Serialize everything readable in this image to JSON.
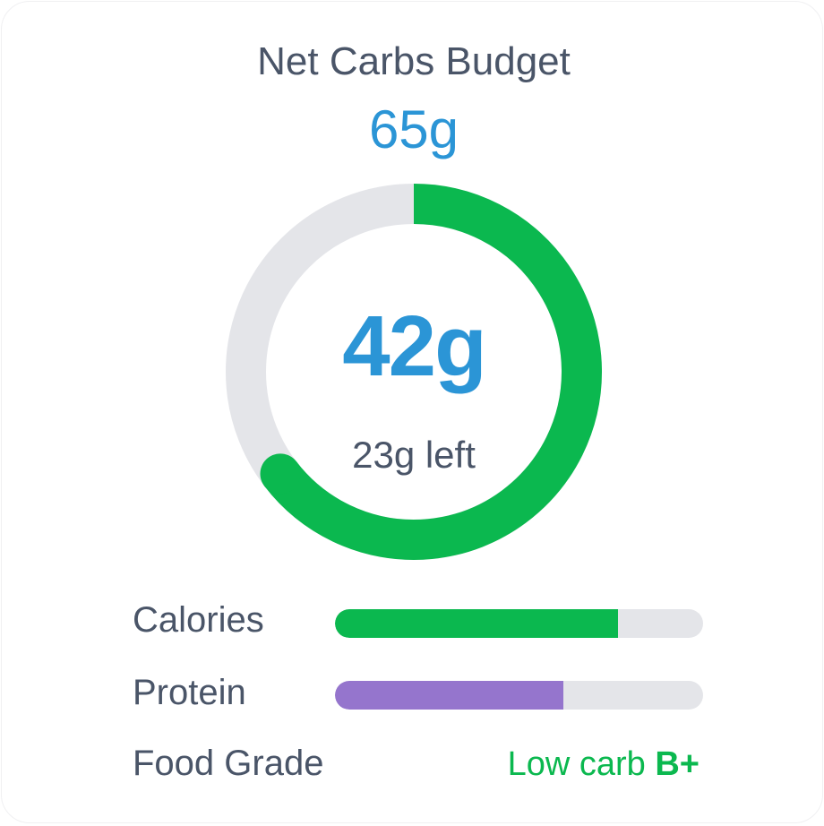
{
  "header": {
    "title": "Net Carbs Budget",
    "budget": "65g"
  },
  "ring": {
    "consumed_label": "42g",
    "remaining_label": "23g left",
    "consumed": 42,
    "budget": 65,
    "fill_color": "#0bb84f",
    "track_color": "#e4e5e9"
  },
  "metrics": [
    {
      "label": "Calories",
      "progress": 0.77,
      "color": "#0bb84f"
    },
    {
      "label": "Protein",
      "progress": 0.62,
      "color": "#9575cd"
    }
  ],
  "food_grade": {
    "label": "Food Grade",
    "text": "Low carb",
    "grade": "B+",
    "color": "#0bb84f"
  }
}
